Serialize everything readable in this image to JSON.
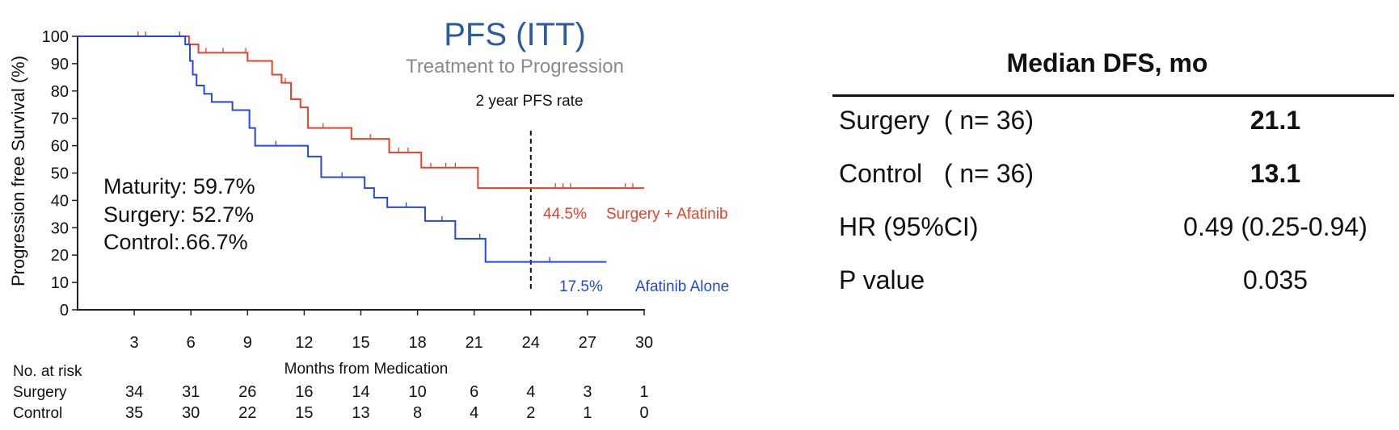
{
  "chart_data": {
    "type": "line",
    "title": "PFS (ITT)",
    "subtitle": "Treatment to Progression",
    "xlabel": "Months from Medication",
    "ylabel": "Progression free Survival (%)",
    "xlim": [
      0,
      30
    ],
    "ylim": [
      0,
      100
    ],
    "xticks": [
      "3",
      "6",
      "9",
      "12",
      "15",
      "18",
      "21",
      "24",
      "27",
      "30"
    ],
    "yticks": [
      "0",
      "10",
      "20",
      "30",
      "40",
      "50",
      "60",
      "70",
      "80",
      "90",
      "100"
    ],
    "series": [
      {
        "name": "Surgery + Afatinib",
        "color": "#e8412a",
        "x": [
          0,
          5.9,
          6.4,
          9.0,
          10.3,
          10.8,
          11.3,
          11.8,
          12.2,
          14.5,
          16.5,
          18.2,
          21.2,
          30.0
        ],
        "y": [
          100,
          97,
          94,
          91,
          86,
          83,
          77,
          74,
          66.5,
          62.5,
          57.5,
          52,
          44.5,
          44.5
        ],
        "censor_x": [
          3.2,
          3.6,
          6.8,
          7.7,
          8.9,
          11.0,
          13.0,
          15.5,
          17.0,
          17.5,
          18.7,
          19.5,
          20.0,
          25.3,
          25.7,
          26.1,
          29.0,
          29.4
        ],
        "end_label": "44.5%"
      },
      {
        "name": "Afatinib Alone",
        "color": "#2448e0",
        "x": [
          0,
          5.7,
          5.95,
          6.1,
          6.3,
          6.7,
          7.1,
          8.2,
          9.1,
          9.4,
          12.2,
          12.9,
          15.2,
          15.7,
          16.4,
          18.4,
          20.0,
          21.6,
          28.0
        ],
        "y": [
          100,
          97,
          91,
          86,
          82,
          79,
          76,
          73,
          66.5,
          60,
          56,
          48.5,
          44.5,
          41,
          37.5,
          32.5,
          26,
          17.5,
          17.5
        ],
        "censor_x": [
          5.4,
          10.5,
          14.0,
          17.4,
          19.3,
          21.3,
          25.0
        ],
        "end_label": "17.5%"
      }
    ],
    "annotations": {
      "reference_line_x": 24,
      "reference_line_label": "2 year PFS rate",
      "maturity_lines": [
        "Maturity: 59.7%",
        "Surgery: 52.7%",
        "Control:.66.7%"
      ]
    },
    "risk_table": {
      "header": "No. at risk",
      "rows": [
        {
          "label": "Surgery",
          "values": [
            "34",
            "31",
            "26",
            "16",
            "14",
            "10",
            "6",
            "4",
            "3",
            "1"
          ]
        },
        {
          "label": "Control",
          "values": [
            "35",
            "30",
            "22",
            "15",
            "13",
            "8",
            "4",
            "2",
            "1",
            "0"
          ]
        }
      ]
    }
  },
  "summary_table": {
    "title": "Median DFS, mo",
    "rows": [
      {
        "label": "Surgery  ( n= 36)",
        "value": "21.1",
        "bold": true
      },
      {
        "label": "Control   ( n= 36)",
        "value": "13.1",
        "bold": true
      },
      {
        "label": "HR (95%CI)",
        "value": "0.49 (0.25-0.94)",
        "bold": false
      },
      {
        "label": "P value",
        "value": "0.035",
        "bold": false
      }
    ]
  },
  "colors": {
    "title": "#2a5aa0",
    "subtitle": "#8a8a8a",
    "axis": "#222222"
  }
}
